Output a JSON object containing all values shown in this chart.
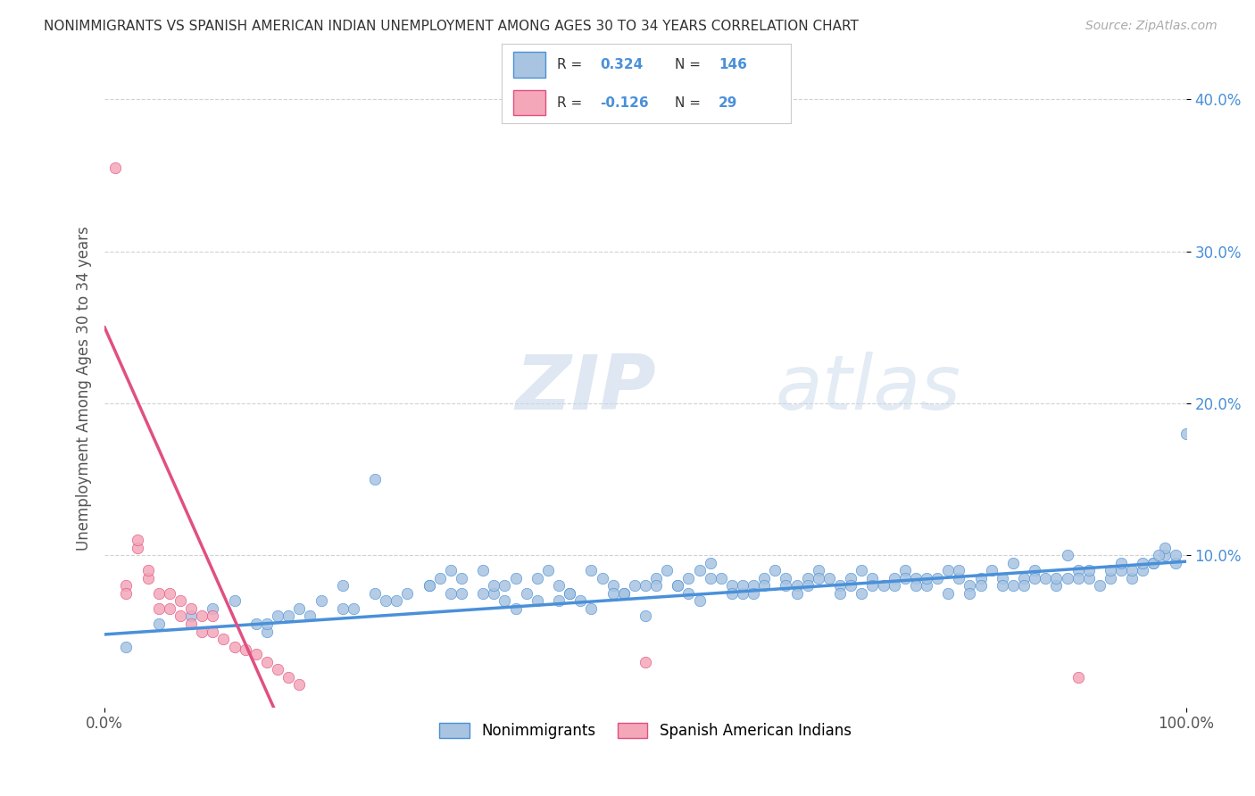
{
  "title": "NONIMMIGRANTS VS SPANISH AMERICAN INDIAN UNEMPLOYMENT AMONG AGES 30 TO 34 YEARS CORRELATION CHART",
  "source": "Source: ZipAtlas.com",
  "ylabel": "Unemployment Among Ages 30 to 34 years",
  "xlim": [
    0.0,
    1.0
  ],
  "ylim": [
    0.0,
    0.42
  ],
  "xtick_labels": [
    "0.0%",
    "100.0%"
  ],
  "ytick_labels": [
    "10.0%",
    "20.0%",
    "30.0%",
    "40.0%"
  ],
  "ytick_values": [
    0.1,
    0.2,
    0.3,
    0.4
  ],
  "color_blue": "#a8c4e0",
  "color_pink": "#f4a7b9",
  "color_blue_text": "#4a90d9",
  "trendline_blue": "#4a90d9",
  "trendline_pink": "#e05080",
  "background": "#ffffff",
  "watermark_zip": "ZIP",
  "watermark_atlas": "atlas",
  "label_nonimmigrants": "Nonimmigrants",
  "label_spanish": "Spanish American Indians",
  "blue_scatter_x": [
    0.02,
    0.05,
    0.08,
    0.1,
    0.12,
    0.14,
    0.15,
    0.16,
    0.18,
    0.2,
    0.22,
    0.23,
    0.25,
    0.26,
    0.28,
    0.3,
    0.31,
    0.32,
    0.33,
    0.35,
    0.36,
    0.37,
    0.38,
    0.4,
    0.41,
    0.42,
    0.43,
    0.45,
    0.46,
    0.47,
    0.48,
    0.5,
    0.51,
    0.52,
    0.53,
    0.54,
    0.55,
    0.56,
    0.57,
    0.58,
    0.59,
    0.6,
    0.61,
    0.62,
    0.63,
    0.64,
    0.65,
    0.66,
    0.67,
    0.68,
    0.69,
    0.7,
    0.71,
    0.72,
    0.73,
    0.74,
    0.75,
    0.76,
    0.77,
    0.78,
    0.79,
    0.8,
    0.81,
    0.82,
    0.83,
    0.84,
    0.85,
    0.86,
    0.87,
    0.88,
    0.89,
    0.9,
    0.91,
    0.92,
    0.93,
    0.94,
    0.95,
    0.96,
    0.97,
    0.98,
    0.99,
    1.0,
    0.35,
    0.4,
    0.45,
    0.5,
    0.55,
    0.6,
    0.65,
    0.7,
    0.75,
    0.8,
    0.85,
    0.9,
    0.95,
    0.38,
    0.42,
    0.48,
    0.53,
    0.58,
    0.63,
    0.68,
    0.73,
    0.78,
    0.83,
    0.88,
    0.93,
    0.97,
    0.15,
    0.25,
    0.3,
    0.33,
    0.36,
    0.39,
    0.44,
    0.47,
    0.51,
    0.56,
    0.61,
    0.66,
    0.71,
    0.76,
    0.81,
    0.86,
    0.91,
    0.96,
    0.22,
    0.27,
    0.32,
    0.37,
    0.43,
    0.49,
    0.54,
    0.59,
    0.64,
    0.69,
    0.74,
    0.79,
    0.84,
    0.89,
    0.94,
    0.99,
    0.98,
    0.975,
    0.17,
    0.19
  ],
  "blue_scatter_y": [
    0.04,
    0.055,
    0.06,
    0.065,
    0.07,
    0.055,
    0.05,
    0.06,
    0.065,
    0.07,
    0.08,
    0.065,
    0.15,
    0.07,
    0.075,
    0.08,
    0.085,
    0.09,
    0.085,
    0.09,
    0.075,
    0.08,
    0.085,
    0.085,
    0.09,
    0.08,
    0.075,
    0.09,
    0.085,
    0.08,
    0.075,
    0.08,
    0.085,
    0.09,
    0.08,
    0.085,
    0.09,
    0.095,
    0.085,
    0.08,
    0.075,
    0.08,
    0.085,
    0.09,
    0.085,
    0.08,
    0.085,
    0.09,
    0.085,
    0.08,
    0.085,
    0.09,
    0.085,
    0.08,
    0.085,
    0.09,
    0.085,
    0.08,
    0.085,
    0.09,
    0.085,
    0.08,
    0.085,
    0.09,
    0.085,
    0.08,
    0.085,
    0.09,
    0.085,
    0.08,
    0.085,
    0.09,
    0.085,
    0.08,
    0.085,
    0.09,
    0.085,
    0.09,
    0.095,
    0.1,
    0.095,
    0.18,
    0.075,
    0.07,
    0.065,
    0.06,
    0.07,
    0.075,
    0.08,
    0.075,
    0.08,
    0.075,
    0.08,
    0.085,
    0.09,
    0.065,
    0.07,
    0.075,
    0.08,
    0.075,
    0.08,
    0.075,
    0.08,
    0.075,
    0.08,
    0.085,
    0.09,
    0.095,
    0.055,
    0.075,
    0.08,
    0.075,
    0.08,
    0.075,
    0.07,
    0.075,
    0.08,
    0.085,
    0.08,
    0.085,
    0.08,
    0.085,
    0.08,
    0.085,
    0.09,
    0.095,
    0.065,
    0.07,
    0.075,
    0.07,
    0.075,
    0.08,
    0.075,
    0.08,
    0.075,
    0.08,
    0.085,
    0.09,
    0.095,
    0.1,
    0.095,
    0.1,
    0.105,
    0.1,
    0.06,
    0.06
  ],
  "pink_scatter_x": [
    0.01,
    0.02,
    0.03,
    0.04,
    0.05,
    0.06,
    0.07,
    0.08,
    0.09,
    0.1,
    0.11,
    0.12,
    0.13,
    0.14,
    0.15,
    0.16,
    0.17,
    0.18,
    0.02,
    0.03,
    0.04,
    0.05,
    0.06,
    0.07,
    0.08,
    0.09,
    0.1,
    0.5,
    0.9
  ],
  "pink_scatter_y": [
    0.355,
    0.08,
    0.105,
    0.085,
    0.065,
    0.065,
    0.06,
    0.055,
    0.05,
    0.05,
    0.045,
    0.04,
    0.038,
    0.035,
    0.03,
    0.025,
    0.02,
    0.015,
    0.075,
    0.11,
    0.09,
    0.075,
    0.075,
    0.07,
    0.065,
    0.06,
    0.06,
    0.03,
    0.02
  ]
}
